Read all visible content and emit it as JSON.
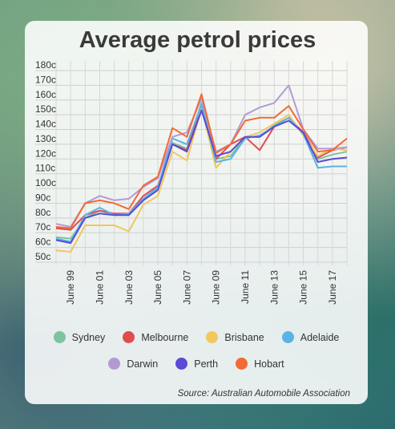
{
  "chart_data": {
    "type": "line",
    "title": "Average petrol prices",
    "xlabel": "",
    "ylabel": "",
    "ylim": [
      50,
      180
    ],
    "y_ticks": [
      "180c",
      "170c",
      "160c",
      "150c",
      "140c",
      "130c",
      "120c",
      "110c",
      "100c",
      "90c",
      "80c",
      "70c",
      "60c",
      "50c"
    ],
    "x_tick_labels": [
      "June 99",
      "June 01",
      "June 03",
      "June 05",
      "June 07",
      "June 09",
      "June 11",
      "June 13",
      "June 15",
      "June 17"
    ],
    "x": [
      1998,
      1999,
      2000,
      2001,
      2002,
      2003,
      2004,
      2005,
      2006,
      2007,
      2008,
      2009,
      2010,
      2011,
      2012,
      2013,
      2014,
      2015,
      2016,
      2017,
      2018
    ],
    "grid": true,
    "legend_position": "bottom",
    "series": [
      {
        "name": "Sydney",
        "color": "#7cc4a0",
        "values": [
          67,
          66,
          80,
          85,
          82,
          82,
          92,
          100,
          131,
          127,
          158,
          120,
          122,
          135,
          135,
          143,
          148,
          138,
          120,
          123,
          125
        ]
      },
      {
        "name": "Melbourne",
        "color": "#e04c4c",
        "values": [
          73,
          72,
          82,
          85,
          83,
          83,
          95,
          102,
          130,
          126,
          156,
          120,
          130,
          135,
          126,
          142,
          148,
          138,
          121,
          126,
          128
        ]
      },
      {
        "name": "Brisbane",
        "color": "#f2c75c",
        "values": [
          58,
          57,
          75,
          75,
          75,
          71,
          89,
          95,
          125,
          119,
          155,
          114,
          125,
          135,
          138,
          144,
          150,
          136,
          122,
          127,
          126
        ]
      },
      {
        "name": "Adelaide",
        "color": "#5ab3e6",
        "values": [
          66,
          64,
          82,
          87,
          82,
          83,
          93,
          101,
          134,
          130,
          157,
          118,
          120,
          134,
          136,
          142,
          148,
          137,
          114,
          115,
          115
        ]
      },
      {
        "name": "Darwin",
        "color": "#b39ad6",
        "values": [
          76,
          74,
          90,
          95,
          92,
          93,
          101,
          107,
          135,
          138,
          161,
          125,
          130,
          150,
          155,
          158,
          170,
          140,
          127,
          127,
          128
        ]
      },
      {
        "name": "Perth",
        "color": "#5b4ad6",
        "values": [
          65,
          63,
          80,
          83,
          82,
          82,
          92,
          99,
          130,
          125,
          153,
          122,
          125,
          135,
          135,
          142,
          146,
          138,
          118,
          120,
          121
        ]
      },
      {
        "name": "Hobart",
        "color": "#f26a35",
        "values": [
          74,
          73,
          90,
          92,
          90,
          86,
          102,
          108,
          141,
          135,
          164,
          124,
          130,
          146,
          148,
          148,
          156,
          140,
          125,
          126,
          134
        ]
      }
    ],
    "source": "Source: Australian Automobile Association"
  }
}
